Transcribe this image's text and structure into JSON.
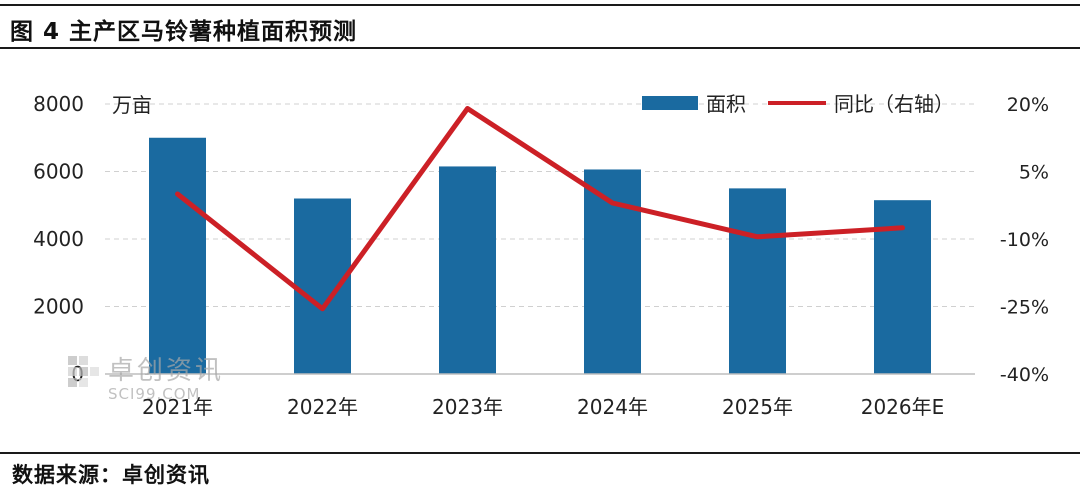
{
  "figure": {
    "title": "图 4 主产区马铃薯种植面积预测",
    "source": "数据来源：卓创资讯",
    "watermark": {
      "text": "卓创资讯",
      "sub": "SCI99.COM"
    }
  },
  "chart_data": {
    "type": "bar",
    "categories": [
      "2021年",
      "2022年",
      "2023年",
      "2024年",
      "2025年",
      "2026年E"
    ],
    "series": [
      {
        "name": "面积",
        "type": "bar",
        "axis": "left",
        "color": "#1a6aa0",
        "values": [
          7000,
          5200,
          6150,
          6060,
          5500,
          5150
        ]
      },
      {
        "name": "同比（右轴）",
        "type": "line",
        "axis": "right",
        "color": "#cc2026",
        "values": [
          0.0,
          -25.5,
          19.0,
          -2.0,
          -9.5,
          -7.5
        ]
      }
    ],
    "y_left": {
      "unit": "万亩",
      "min": 0,
      "max": 8000,
      "ticks": [
        0,
        2000,
        4000,
        6000,
        8000
      ],
      "tick_labels": [
        "0",
        "2000",
        "4000",
        "6000",
        "8000"
      ]
    },
    "y_right": {
      "min": -40,
      "max": 20,
      "ticks": [
        -40,
        -25,
        -10,
        5,
        20
      ],
      "tick_labels": [
        "-40%",
        "-25%",
        "-10%",
        "5%",
        "20%"
      ]
    },
    "grid": "horizontal-dashed",
    "legend": "top-right"
  }
}
